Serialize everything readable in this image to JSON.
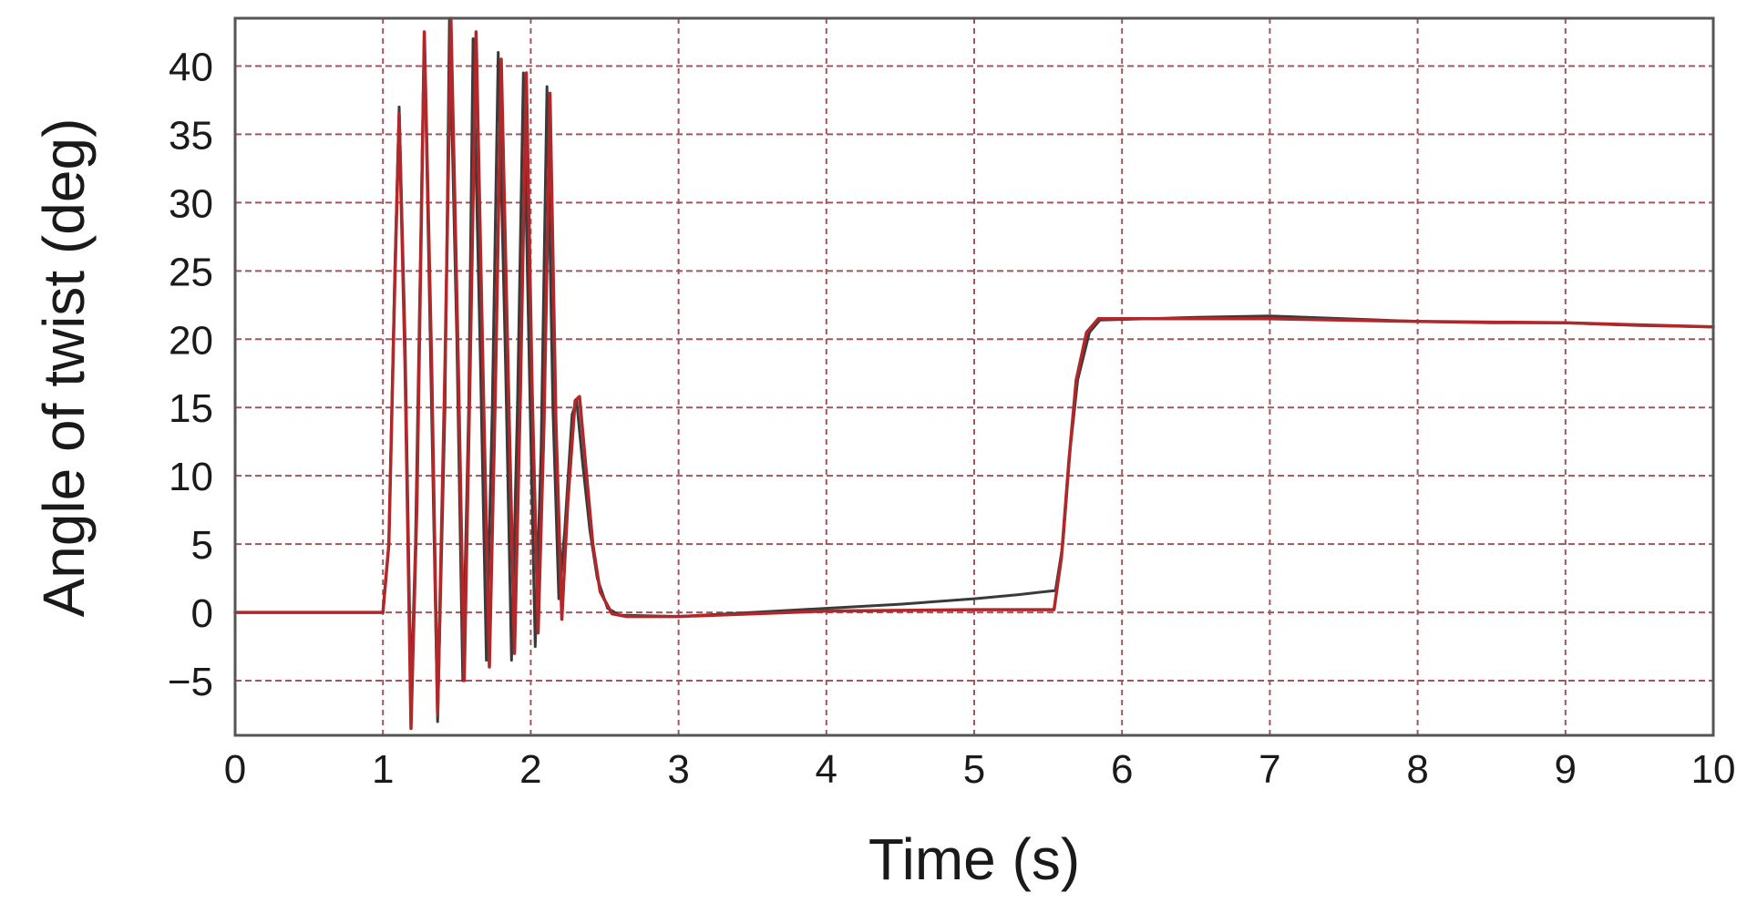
{
  "chart_data": {
    "type": "line",
    "title": "",
    "xlabel": "Time (s)",
    "ylabel": "Angle of twist (deg)",
    "xlim": [
      0,
      10
    ],
    "ylim": [
      -9,
      43.5
    ],
    "xticks": [
      0,
      1,
      2,
      3,
      4,
      5,
      6,
      7,
      8,
      9,
      10
    ],
    "yticks": [
      -5,
      0,
      5,
      10,
      15,
      20,
      25,
      30,
      35,
      40
    ],
    "ytick_labels": [
      "−5",
      "0",
      "5",
      "10",
      "15",
      "20",
      "25",
      "30",
      "35",
      "40"
    ],
    "grid": true,
    "legend": "none",
    "colors": {
      "series_dark": "#3a3a3a",
      "series_red": "#b0282a",
      "grid": "#a0565c",
      "frame": "#555555"
    },
    "series": [
      {
        "color": "#3a3a3a",
        "points": [
          [
            0,
            0
          ],
          [
            1.0,
            0
          ],
          [
            1.04,
            5
          ],
          [
            1.08,
            25
          ],
          [
            1.11,
            37
          ],
          [
            1.15,
            20
          ],
          [
            1.19,
            -6
          ],
          [
            1.22,
            5
          ],
          [
            1.28,
            42.5
          ],
          [
            1.32,
            20
          ],
          [
            1.37,
            -8
          ],
          [
            1.42,
            15
          ],
          [
            1.45,
            43.5
          ],
          [
            1.5,
            20
          ],
          [
            1.54,
            -5
          ],
          [
            1.58,
            15
          ],
          [
            1.61,
            42
          ],
          [
            1.66,
            18
          ],
          [
            1.7,
            -3.5
          ],
          [
            1.74,
            15
          ],
          [
            1.78,
            41
          ],
          [
            1.83,
            18
          ],
          [
            1.87,
            -3.5
          ],
          [
            1.91,
            15
          ],
          [
            1.95,
            39.5
          ],
          [
            1.99,
            18
          ],
          [
            2.03,
            -2.5
          ],
          [
            2.07,
            12
          ],
          [
            2.11,
            38.5
          ],
          [
            2.15,
            15
          ],
          [
            2.19,
            1
          ],
          [
            2.23,
            6
          ],
          [
            2.28,
            14.5
          ],
          [
            2.31,
            15.5
          ],
          [
            2.35,
            11
          ],
          [
            2.4,
            6
          ],
          [
            2.45,
            2.5
          ],
          [
            2.52,
            0.3
          ],
          [
            2.6,
            -0.2
          ],
          [
            3.0,
            -0.3
          ],
          [
            3.5,
            0
          ],
          [
            4.0,
            0.3
          ],
          [
            4.5,
            0.6
          ],
          [
            5.0,
            1.0
          ],
          [
            5.3,
            1.3
          ],
          [
            5.55,
            1.6
          ],
          [
            5.6,
            5
          ],
          [
            5.65,
            12
          ],
          [
            5.7,
            17
          ],
          [
            5.78,
            20.5
          ],
          [
            5.85,
            21.4
          ],
          [
            6.5,
            21.6
          ],
          [
            7.0,
            21.7
          ],
          [
            7.5,
            21.5
          ],
          [
            8.0,
            21.3
          ],
          [
            8.5,
            21.2
          ],
          [
            9.0,
            21.2
          ],
          [
            9.5,
            21.0
          ],
          [
            10.0,
            20.9
          ]
        ]
      },
      {
        "color": "#b0282a",
        "points": [
          [
            0,
            0
          ],
          [
            1.0,
            0
          ],
          [
            1.04,
            5
          ],
          [
            1.08,
            24
          ],
          [
            1.11,
            36.5
          ],
          [
            1.15,
            18
          ],
          [
            1.19,
            -8.5
          ],
          [
            1.23,
            8
          ],
          [
            1.28,
            42.5
          ],
          [
            1.33,
            18
          ],
          [
            1.37,
            -7.5
          ],
          [
            1.42,
            18
          ],
          [
            1.46,
            43.5
          ],
          [
            1.51,
            18
          ],
          [
            1.55,
            -5
          ],
          [
            1.59,
            18
          ],
          [
            1.63,
            42.5
          ],
          [
            1.68,
            16
          ],
          [
            1.72,
            -4
          ],
          [
            1.76,
            16
          ],
          [
            1.8,
            40.5
          ],
          [
            1.85,
            16
          ],
          [
            1.89,
            -3
          ],
          [
            1.93,
            16
          ],
          [
            1.97,
            39.5
          ],
          [
            2.01,
            16
          ],
          [
            2.05,
            -1.5
          ],
          [
            2.09,
            14
          ],
          [
            2.13,
            38
          ],
          [
            2.17,
            14
          ],
          [
            2.21,
            -0.5
          ],
          [
            2.25,
            8
          ],
          [
            2.3,
            15.5
          ],
          [
            2.33,
            15.8
          ],
          [
            2.37,
            11
          ],
          [
            2.42,
            5
          ],
          [
            2.47,
            1.5
          ],
          [
            2.55,
            -0.1
          ],
          [
            2.65,
            -0.3
          ],
          [
            3.0,
            -0.3
          ],
          [
            4.0,
            0.1
          ],
          [
            5.0,
            0.2
          ],
          [
            5.54,
            0.2
          ],
          [
            5.59,
            4
          ],
          [
            5.64,
            11
          ],
          [
            5.69,
            17
          ],
          [
            5.76,
            20.5
          ],
          [
            5.84,
            21.5
          ],
          [
            6.5,
            21.5
          ],
          [
            7.0,
            21.5
          ],
          [
            8.0,
            21.3
          ],
          [
            9.0,
            21.2
          ],
          [
            10.0,
            20.9
          ]
        ]
      }
    ]
  }
}
